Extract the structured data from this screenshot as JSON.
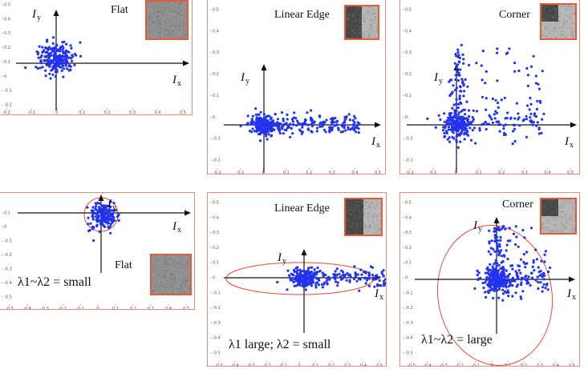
{
  "colors": {
    "points": "#2233ee",
    "ellipse": "#e84a3a",
    "border": "#ea8c7a",
    "axis": "#111111"
  },
  "axis_labels": {
    "x_main": "I",
    "x_sub": "x",
    "y_main": "I",
    "y_sub": "y"
  },
  "panels": [
    {
      "id": "top-flat",
      "title": "Flat",
      "caption": "",
      "thumbnail": "flat",
      "x_ticks": [
        "-0.2",
        "-0.1",
        "0",
        "0.1",
        "0.2",
        "0.3",
        "0.4",
        "0.5"
      ],
      "y_ticks": [
        "0.5",
        "0.4",
        "0.3",
        "0.2",
        "0.1",
        "0",
        "-0.1",
        "-0.2"
      ]
    },
    {
      "id": "top-edge",
      "title": "Linear Edge",
      "caption": "",
      "thumbnail": "edge",
      "x_ticks": [
        "-0.2",
        "-0.1",
        "0",
        "0.1",
        "0.2",
        "0.3",
        "0.4",
        "0.5"
      ],
      "y_ticks": [
        "0.5",
        "0.4",
        "0.3",
        "0.2",
        "0.1",
        "0",
        "-0.1",
        "-0.2"
      ]
    },
    {
      "id": "top-corner",
      "title": "Corner",
      "caption": "",
      "thumbnail": "corner",
      "x_ticks": [
        "-0.2",
        "-0.1",
        "0",
        "0.1",
        "0.2",
        "0.3",
        "0.4",
        "0.5"
      ],
      "y_ticks": [
        "0.5",
        "0.4",
        "0.3",
        "0.2",
        "0.1",
        "0",
        "-0.1",
        "-0.2"
      ]
    },
    {
      "id": "bottom-flat",
      "title": "Flat",
      "caption": "λ1~λ2 = small",
      "thumbnail": "flat",
      "x_ticks": [
        "-0.5",
        "-0.4",
        "-0.3",
        "-0.2",
        "-0.1",
        "0",
        "0.1",
        "0.2",
        "0.3",
        "0.4",
        "0.5"
      ],
      "y_ticks": [
        "0.1",
        "0",
        "-0.1",
        "-0.2",
        "-0.3",
        "-0.4",
        "-0.5"
      ]
    },
    {
      "id": "bottom-edge",
      "title": "Linear Edge",
      "caption": "λ1 large; λ2 = small",
      "thumbnail": "edge",
      "x_ticks": [
        "-0.5",
        "-0.4",
        "-0.3",
        "-0.2",
        "-0.1",
        "0",
        "0.1",
        "0.2",
        "0.3",
        "0.4",
        "0.5"
      ],
      "y_ticks": [
        "0.5",
        "0.4",
        "0.3",
        "0.2",
        "0.1",
        "0",
        "-0.1",
        "-0.2",
        "-0.3",
        "-0.4",
        "-0.5"
      ]
    },
    {
      "id": "bottom-corner",
      "title": "Corner",
      "caption": "λ1~λ2 = large",
      "thumbnail": "corner",
      "x_ticks": [
        "-0.5",
        "-0.4",
        "-0.3",
        "-0.2",
        "-0.1",
        "0",
        "0.1",
        "0.2",
        "0.3",
        "0.4",
        "0.5"
      ],
      "y_ticks": [
        "0.5",
        "0.4",
        "0.3",
        "0.2",
        "0.1",
        "0",
        "-0.1",
        "-0.2",
        "-0.3",
        "-0.4",
        "-0.5"
      ]
    }
  ]
}
